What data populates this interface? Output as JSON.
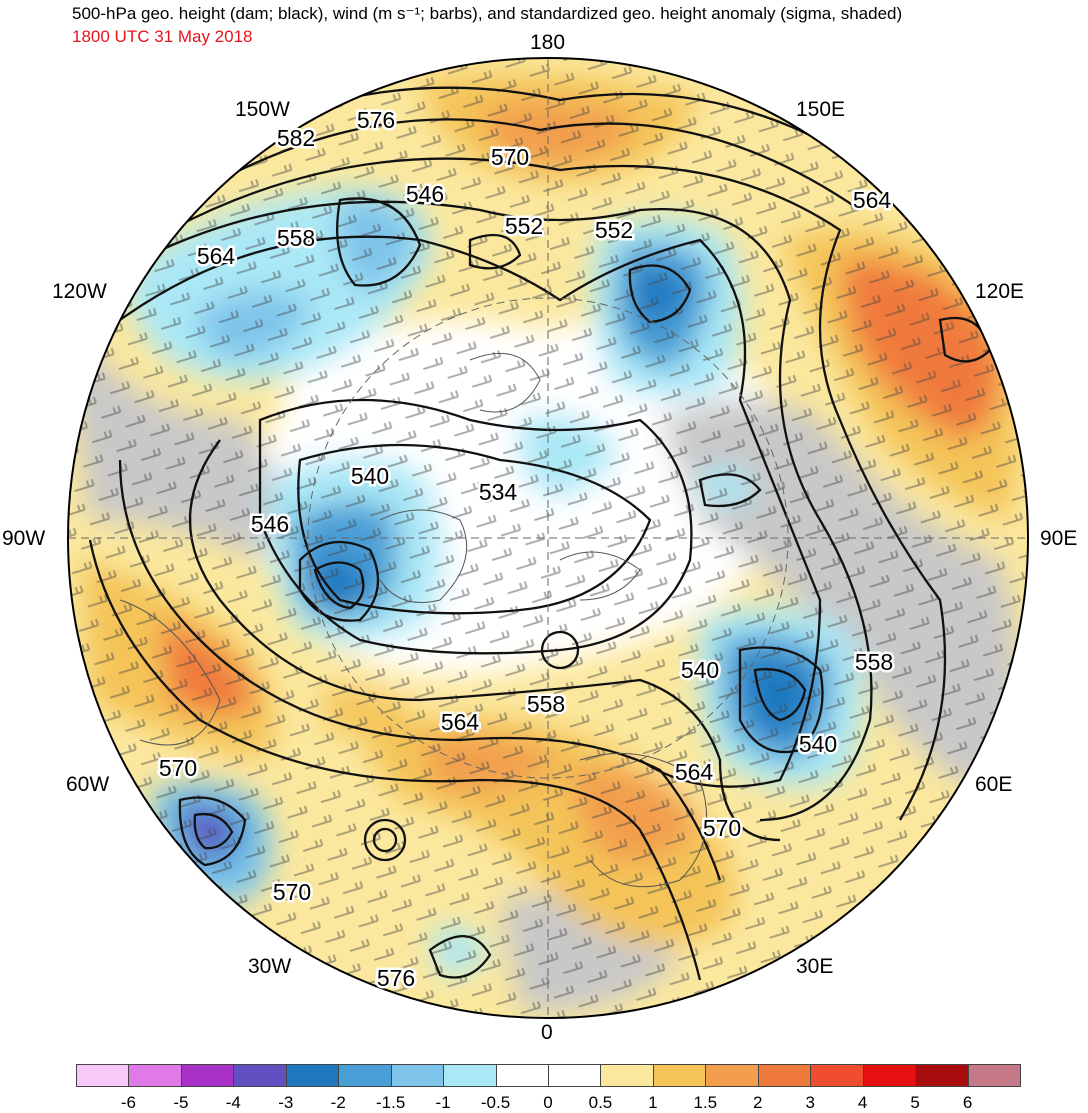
{
  "title": "500-hPa geo. height (dam; black), wind (m s⁻¹; barbs), and standardized geo. height anomaly (sigma, shaded)",
  "subtitle": "1800 UTC 31 May 2018",
  "longitude_labels": [
    "180",
    "150E",
    "120E",
    "90E",
    "60E",
    "30E",
    "0",
    "30W",
    "60W",
    "90W",
    "120W",
    "150W"
  ],
  "contour_labels": [
    "582",
    "576",
    "570",
    "552",
    "546",
    "552",
    "564",
    "558",
    "564",
    "540",
    "534",
    "546",
    "540",
    "558",
    "558",
    "564",
    "564",
    "570",
    "540",
    "570",
    "570",
    "576"
  ],
  "colorbar": {
    "colors": [
      "#f8c8f8",
      "#e07ae8",
      "#a832c8",
      "#6050c0",
      "#1e78c0",
      "#4a9ed6",
      "#7ec4ea",
      "#aae8f6",
      "#ffffff",
      "#ffffff",
      "#fbe89e",
      "#f4c458",
      "#f29e4e",
      "#f07a3c",
      "#f04c2e",
      "#e61010",
      "#a80c0c",
      "#c47888"
    ],
    "labels": [
      "-6",
      "-5",
      "-4",
      "-3",
      "-2",
      "-1.5",
      "-1",
      "-0.5",
      "0",
      "0.5",
      "1",
      "1.5",
      "2",
      "3",
      "4",
      "5",
      "6"
    ]
  },
  "icons": {
    "pole": "polar-stereographic-projection"
  }
}
